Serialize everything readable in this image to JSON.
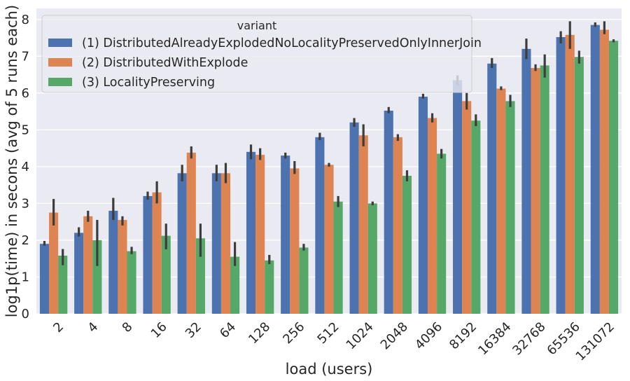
{
  "chart_data": {
    "type": "bar",
    "xlabel": "load (users)",
    "ylabel": "log1p(time) in secons (avg of 5 runs each)",
    "ylim": [
      0,
      8.3
    ],
    "yticks": [
      "0",
      "1",
      "2",
      "3",
      "4",
      "5",
      "6",
      "7",
      "8"
    ],
    "grid": true,
    "legend": {
      "title": "variant",
      "placement": "top-left"
    },
    "categories": [
      "2",
      "4",
      "8",
      "16",
      "32",
      "64",
      "128",
      "256",
      "512",
      "1024",
      "2048",
      "4096",
      "8192",
      "16384",
      "32768",
      "65536",
      "131072"
    ],
    "series": [
      {
        "name": "(1) DistributedAlreadyExplodedNoLocalityPreservedOnlyInnerJoin",
        "color": "#4c72b0",
        "values": [
          1.9,
          2.2,
          2.8,
          3.2,
          3.82,
          3.82,
          4.4,
          4.3,
          4.8,
          5.2,
          5.52,
          5.9,
          6.35,
          6.8,
          7.2,
          7.52,
          7.85
        ],
        "err": [
          [
            1.85,
            1.98
          ],
          [
            2.1,
            2.35
          ],
          [
            2.55,
            3.15
          ],
          [
            3.1,
            3.32
          ],
          [
            3.6,
            4.05
          ],
          [
            3.6,
            4.05
          ],
          [
            4.2,
            4.6
          ],
          [
            4.22,
            4.38
          ],
          [
            4.72,
            4.92
          ],
          [
            5.08,
            5.32
          ],
          [
            5.45,
            5.62
          ],
          [
            5.85,
            5.98
          ],
          [
            6.22,
            6.48
          ],
          [
            6.68,
            6.95
          ],
          [
            6.92,
            7.48
          ],
          [
            7.35,
            7.68
          ],
          [
            7.8,
            7.92
          ]
        ]
      },
      {
        "name": "(2) DistributedWithExplode",
        "color": "#dd8452",
        "values": [
          2.75,
          2.65,
          2.55,
          3.3,
          4.38,
          3.82,
          4.32,
          3.95,
          4.05,
          4.85,
          4.8,
          5.32,
          5.78,
          6.12,
          6.68,
          7.58,
          7.72
        ],
        "err": [
          [
            2.4,
            3.12
          ],
          [
            2.5,
            2.8
          ],
          [
            2.4,
            2.65
          ],
          [
            3.0,
            3.6
          ],
          [
            4.22,
            4.55
          ],
          [
            3.55,
            4.1
          ],
          [
            4.18,
            4.5
          ],
          [
            3.8,
            4.15
          ],
          [
            4.0,
            4.1
          ],
          [
            4.55,
            5.15
          ],
          [
            4.7,
            4.88
          ],
          [
            5.2,
            5.45
          ],
          [
            5.55,
            6.0
          ],
          [
            6.08,
            6.18
          ],
          [
            6.6,
            6.78
          ],
          [
            7.2,
            7.95
          ],
          [
            7.6,
            7.95
          ]
        ]
      },
      {
        "name": "(3) LocalityPreserving",
        "color": "#55a868",
        "values": [
          1.58,
          2.0,
          1.7,
          2.12,
          2.05,
          1.55,
          1.45,
          1.8,
          3.05,
          3.0,
          3.75,
          4.35,
          5.25,
          5.78,
          6.75,
          6.98,
          7.42
        ],
        "err": [
          [
            1.32,
            1.76
          ],
          [
            1.3,
            2.55
          ],
          [
            1.62,
            1.82
          ],
          [
            1.75,
            2.45
          ],
          [
            1.55,
            2.45
          ],
          [
            1.3,
            1.95
          ],
          [
            1.35,
            1.6
          ],
          [
            1.72,
            1.9
          ],
          [
            2.9,
            3.2
          ],
          [
            2.95,
            3.05
          ],
          [
            3.6,
            3.9
          ],
          [
            4.22,
            4.48
          ],
          [
            5.1,
            5.42
          ],
          [
            5.62,
            5.95
          ],
          [
            6.42,
            7.05
          ],
          [
            6.8,
            7.15
          ],
          [
            7.38,
            7.46
          ]
        ]
      }
    ]
  }
}
